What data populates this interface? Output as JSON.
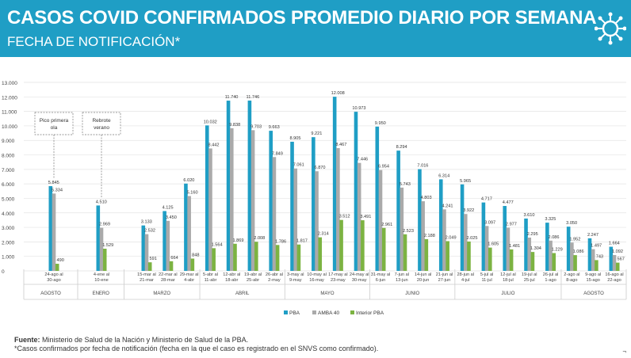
{
  "header": {
    "title": "CASOS COVID CONFIRMADOS PROMEDIO DIARIO POR SEMANA",
    "subtitle": "FECHA DE NOTIFICACIÓN*",
    "logo_icon": "virus-icon"
  },
  "colors": {
    "header_bg": "#1f9ec5",
    "pba": "#1f9ec5",
    "amba": "#aaaaaa",
    "interior": "#7cb342"
  },
  "chart_data": {
    "type": "bar",
    "ylim": [
      0,
      13000
    ],
    "yticks": [
      "0",
      "1.000",
      "2.000",
      "3.000",
      "4.000",
      "5.000",
      "6.000",
      "7.000",
      "8.000",
      "9.000",
      "10.000",
      "11.000",
      "12.000",
      "13.000"
    ],
    "grid": true,
    "legend_position": "bottom",
    "categories": [
      "24-ago al 30-ago",
      "4-ene al 10-ene",
      "15-mar al 21-mar",
      "22-mar al 28-mar",
      "29-mar al 4-abr",
      "5-abr al 11-abr",
      "12-abr al 18-abr",
      "19-abr al 25-abr",
      "26-abr al 2-may",
      "3-may al 9-may",
      "10-may al 16-may",
      "17-may al 23-may",
      "24-may al 30-may",
      "31-may al 6-jun",
      "7-jun al 13-jun",
      "14-jun al 20-jun",
      "21-jun al 27-jun",
      "28-jun al 4-jul",
      "5-jul al 11-jul",
      "12-jul al 18-jul",
      "19-jul al 25-jul",
      "26-jul al 1-ago",
      "2-ago al 8-ago",
      "9-ago al 15-ago",
      "16-ago al 22-ago"
    ],
    "series": [
      {
        "name": "PBA",
        "values": [
          5845,
          4510,
          3133,
          4125,
          6020,
          10032,
          11740,
          11746,
          9663,
          8905,
          9221,
          12008,
          10973,
          9950,
          8294,
          7016,
          6314,
          5965,
          4717,
          4477,
          3610,
          3325,
          3050,
          2247,
          1664
        ],
        "labels": [
          "5.845",
          "4.510",
          "3.133",
          "4.125",
          "6.020",
          "10.032",
          "11.740",
          "11.746",
          "9.663",
          "8.905",
          "9.221",
          "12.008",
          "10.973",
          "9.950",
          "8.294",
          "7.016",
          "6.314",
          "5.965",
          "4.717",
          "4.477",
          "3.610",
          "3.325",
          "3.050",
          "2.247",
          "1.664"
        ]
      },
      {
        "name": "AMBA 40",
        "values": [
          5334,
          2969,
          2532,
          3450,
          5160,
          8442,
          9838,
          9703,
          7849,
          7061,
          6870,
          8467,
          7446,
          6954,
          5743,
          4803,
          4241,
          3922,
          3097,
          2977,
          2295,
          2086,
          1952,
          1497,
          1092
        ],
        "labels": [
          "5.334",
          "2.969",
          "2.532",
          "3.450",
          "5.160",
          "8.442",
          "9.838",
          "9.703",
          "7.849",
          "7.061",
          "6.870",
          "8.467",
          "7.446",
          "6.954",
          "5.743",
          "4.803",
          "4.241",
          "3.922",
          "3.097",
          "2.977",
          "2.295",
          "2.086",
          "1.952",
          "1.497",
          "1.092"
        ]
      },
      {
        "name": "Interior PBA",
        "values": [
          490,
          1529,
          591,
          664,
          848,
          1564,
          1869,
          2008,
          1786,
          1817,
          2314,
          3512,
          3491,
          2961,
          2523,
          2188,
          2049,
          2025,
          1605,
          1481,
          1304,
          1229,
          1086,
          743,
          567
        ],
        "labels": [
          "490",
          "1.529",
          "591",
          "664",
          "848",
          "1.564",
          "1.869",
          "2.008",
          "1.786",
          "1.817",
          "2.314",
          "3.512",
          "3.491",
          "2.961",
          "2.523",
          "2.188",
          "2.049",
          "2.025",
          "1.605",
          "1.481",
          "1.304",
          "1.229",
          "1.086",
          "743",
          "567"
        ]
      }
    ],
    "months": [
      {
        "label": "AGOSTO",
        "from": 0,
        "to": 0
      },
      {
        "label": "ENERO",
        "from": 1,
        "to": 1
      },
      {
        "label": "MARZO",
        "from": 2,
        "to": 4
      },
      {
        "label": "ABRIL",
        "from": 5,
        "to": 8
      },
      {
        "label": "MAYO",
        "from": 9,
        "to": 12
      },
      {
        "label": "JUNIO",
        "from": 13,
        "to": 16
      },
      {
        "label": "JULIO",
        "from": 17,
        "to": 21
      },
      {
        "label": "AGOSTO",
        "from": 22,
        "to": 24
      }
    ],
    "annotations": [
      {
        "text": "Pico primera ola",
        "category": 0
      },
      {
        "text": "Rebrote verano",
        "category": 1
      }
    ]
  },
  "footer": {
    "source_label": "Fuente:",
    "source_text": " Ministerio de Salud de la Nación y Ministerio de Salud de la PBA.",
    "note": "*Casos confirmados por fecha de notificación (fecha en la que el caso es registrado en el SNVS como confirmado).",
    "corner_mark": "¬"
  }
}
